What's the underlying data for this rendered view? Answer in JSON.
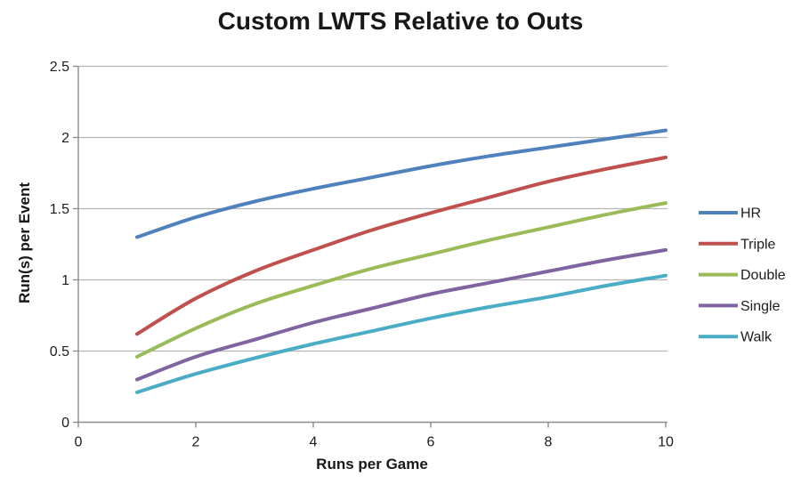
{
  "chart_data": {
    "type": "line",
    "title": "Custom LWTS Relative to Outs",
    "xlabel": "Runs per Game",
    "ylabel": "Run(s) per Event",
    "xlim": [
      0,
      10
    ],
    "ylim": [
      0,
      2.5
    ],
    "x_ticks": [
      0,
      2,
      4,
      6,
      8,
      10
    ],
    "y_ticks": [
      0,
      0.5,
      1,
      1.5,
      2,
      2.5
    ],
    "grid": "horizontal-only",
    "legend_position": "right",
    "x": [
      1,
      2,
      3,
      4,
      5,
      6,
      7,
      8,
      9,
      10
    ],
    "series": [
      {
        "name": "HR",
        "color": "#4F81BD",
        "values": [
          1.3,
          1.44,
          1.55,
          1.64,
          1.72,
          1.8,
          1.87,
          1.93,
          1.99,
          2.05
        ]
      },
      {
        "name": "Triple",
        "color": "#C0504D",
        "values": [
          0.62,
          0.87,
          1.06,
          1.21,
          1.35,
          1.47,
          1.58,
          1.69,
          1.78,
          1.86
        ]
      },
      {
        "name": "Double",
        "color": "#9BBB59",
        "values": [
          0.46,
          0.66,
          0.83,
          0.96,
          1.08,
          1.18,
          1.28,
          1.37,
          1.46,
          1.54
        ]
      },
      {
        "name": "Single",
        "color": "#8064A2",
        "values": [
          0.3,
          0.46,
          0.58,
          0.7,
          0.8,
          0.9,
          0.98,
          1.06,
          1.14,
          1.21
        ]
      },
      {
        "name": "Walk",
        "color": "#4BACC6",
        "values": [
          0.21,
          0.34,
          0.45,
          0.55,
          0.64,
          0.73,
          0.81,
          0.88,
          0.96,
          1.03
        ]
      }
    ],
    "colors": {
      "gridline": "#b5b5b5",
      "axis": "#8c8c8c",
      "tick_label": "#1c1c1c",
      "background": "#ffffff"
    }
  }
}
